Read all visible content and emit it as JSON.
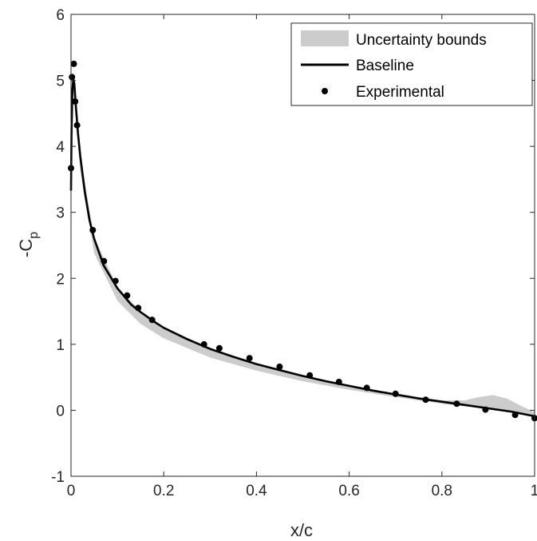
{
  "chart_data": {
    "type": "line",
    "xlabel": "x/c",
    "ylabel_main": "-C",
    "ylabel_sub": "p",
    "xlim": [
      0,
      1
    ],
    "ylim": [
      -1,
      6
    ],
    "xticks": [
      0,
      0.2,
      0.4,
      0.6,
      0.8,
      1
    ],
    "xtick_labels": [
      "0",
      "0.2",
      "0.4",
      "0.6",
      "0.8",
      "1"
    ],
    "yticks": [
      -1,
      0,
      1,
      2,
      3,
      4,
      5,
      6
    ],
    "ytick_labels": [
      "-1",
      "0",
      "1",
      "2",
      "3",
      "4",
      "5",
      "6"
    ],
    "legend_position": "top-right",
    "legend": {
      "bounds_label": "Uncertainty bounds",
      "baseline_label": "Baseline",
      "experimental_label": "Experimental"
    },
    "colors": {
      "bounds": "#cccccc",
      "baseline": "#000000",
      "experimental": "#000000",
      "axes": "#262626"
    },
    "baseline": {
      "x": [
        0.0,
        0.001,
        0.003,
        0.005,
        0.007,
        0.01,
        0.015,
        0.02,
        0.03,
        0.04,
        0.05,
        0.07,
        0.1,
        0.13,
        0.15,
        0.18,
        0.2,
        0.25,
        0.3,
        0.35,
        0.4,
        0.45,
        0.5,
        0.55,
        0.6,
        0.65,
        0.7,
        0.75,
        0.8,
        0.85,
        0.9,
        0.95,
        1.0
      ],
      "y": [
        3.33,
        4.2,
        4.85,
        5.02,
        4.95,
        4.65,
        4.2,
        3.85,
        3.3,
        2.88,
        2.6,
        2.2,
        1.85,
        1.6,
        1.49,
        1.34,
        1.25,
        1.08,
        0.93,
        0.81,
        0.7,
        0.61,
        0.52,
        0.44,
        0.37,
        0.3,
        0.24,
        0.18,
        0.13,
        0.08,
        0.03,
        -0.02,
        -0.09
      ]
    },
    "uncertainty_bounds": {
      "x": [
        0.0,
        0.005,
        0.01,
        0.02,
        0.05,
        0.1,
        0.15,
        0.2,
        0.3,
        0.4,
        0.5,
        0.6,
        0.7,
        0.8,
        0.85,
        0.88,
        0.91,
        0.94,
        0.97,
        1.0
      ],
      "upper": [
        3.35,
        5.05,
        4.68,
        3.87,
        2.62,
        1.87,
        1.5,
        1.26,
        0.94,
        0.71,
        0.53,
        0.38,
        0.25,
        0.15,
        0.15,
        0.2,
        0.23,
        0.18,
        0.07,
        -0.03
      ],
      "lower": [
        3.2,
        4.9,
        4.45,
        3.62,
        2.38,
        1.66,
        1.31,
        1.09,
        0.8,
        0.6,
        0.44,
        0.31,
        0.2,
        0.1,
        0.06,
        0.04,
        0.02,
        0.0,
        -0.04,
        -0.1
      ]
    },
    "experimental": {
      "x": [
        0.0,
        0.002,
        0.006,
        0.009,
        0.013,
        0.047,
        0.071,
        0.096,
        0.121,
        0.145,
        0.175,
        0.287,
        0.32,
        0.385,
        0.45,
        0.515,
        0.578,
        0.638,
        0.7,
        0.765,
        0.832,
        0.894,
        0.958,
        1.0
      ],
      "y": [
        3.67,
        5.05,
        5.25,
        4.68,
        4.32,
        2.73,
        2.26,
        1.96,
        1.74,
        1.55,
        1.37,
        1.0,
        0.94,
        0.79,
        0.66,
        0.53,
        0.43,
        0.34,
        0.25,
        0.16,
        0.1,
        0.01,
        -0.07,
        -0.12
      ]
    }
  }
}
